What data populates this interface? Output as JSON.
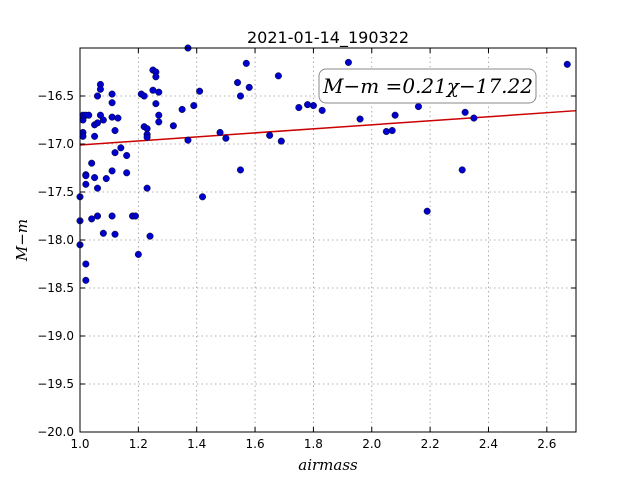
{
  "chart_data": {
    "type": "scatter",
    "title": "2021-01-14_190322",
    "xlabel": "airmass",
    "ylabel": "M−m",
    "xlim": [
      1.0,
      2.7
    ],
    "ylim": [
      -20.0,
      -16.0
    ],
    "x_ticks": [
      1.0,
      1.2,
      1.4,
      1.6,
      1.8,
      2.0,
      2.2,
      2.4,
      2.6
    ],
    "x_tick_labels": [
      "1.0",
      "1.2",
      "1.4",
      "1.6",
      "1.8",
      "2.0",
      "2.2",
      "2.4",
      "2.6"
    ],
    "y_ticks": [
      -16.5,
      -17.0,
      -17.5,
      -18.0,
      -18.5,
      -19.0,
      -19.5,
      -20.0
    ],
    "y_tick_labels": [
      "−16.5",
      "−17.0",
      "−17.5",
      "−18.0",
      "−18.5",
      "−19.0",
      "−19.5",
      "−20.0"
    ],
    "grid": true,
    "annotation": "M−m =0.21χ−17.22",
    "fit_line": {
      "slope": 0.21,
      "intercept": -17.22,
      "color": "#cc0000"
    },
    "marker_color": "#0000cc",
    "points": [
      [
        1.0,
        -17.8
      ],
      [
        1.0,
        -17.55
      ],
      [
        1.0,
        -18.05
      ],
      [
        1.01,
        -16.75
      ],
      [
        1.01,
        -16.7
      ],
      [
        1.01,
        -16.88
      ],
      [
        1.01,
        -16.92
      ],
      [
        1.02,
        -16.7
      ],
      [
        1.02,
        -17.32
      ],
      [
        1.02,
        -17.33
      ],
      [
        1.02,
        -17.42
      ],
      [
        1.02,
        -18.25
      ],
      [
        1.02,
        -18.42
      ],
      [
        1.03,
        -16.7
      ],
      [
        1.04,
        -17.2
      ],
      [
        1.04,
        -17.78
      ],
      [
        1.05,
        -16.8
      ],
      [
        1.05,
        -17.35
      ],
      [
        1.05,
        -16.92
      ],
      [
        1.06,
        -16.5
      ],
      [
        1.06,
        -17.75
      ],
      [
        1.06,
        -17.46
      ],
      [
        1.06,
        -16.78
      ],
      [
        1.07,
        -16.38
      ],
      [
        1.07,
        -16.43
      ],
      [
        1.07,
        -16.7
      ],
      [
        1.08,
        -16.75
      ],
      [
        1.08,
        -17.93
      ],
      [
        1.09,
        -17.36
      ],
      [
        1.11,
        -16.48
      ],
      [
        1.11,
        -16.57
      ],
      [
        1.11,
        -16.72
      ],
      [
        1.11,
        -17.28
      ],
      [
        1.11,
        -17.75
      ],
      [
        1.12,
        -16.86
      ],
      [
        1.12,
        -17.09
      ],
      [
        1.12,
        -17.94
      ],
      [
        1.13,
        -16.73
      ],
      [
        1.14,
        -17.04
      ],
      [
        1.16,
        -17.12
      ],
      [
        1.16,
        -17.3
      ],
      [
        1.18,
        -17.75
      ],
      [
        1.19,
        -17.75
      ],
      [
        1.2,
        -18.15
      ],
      [
        1.21,
        -16.48
      ],
      [
        1.22,
        -16.5
      ],
      [
        1.22,
        -16.82
      ],
      [
        1.23,
        -16.84
      ],
      [
        1.23,
        -16.9
      ],
      [
        1.23,
        -16.93
      ],
      [
        1.23,
        -17.46
      ],
      [
        1.24,
        -17.96
      ],
      [
        1.25,
        -16.44
      ],
      [
        1.25,
        -16.23
      ],
      [
        1.26,
        -16.25
      ],
      [
        1.26,
        -16.3
      ],
      [
        1.26,
        -16.58
      ],
      [
        1.27,
        -16.46
      ],
      [
        1.27,
        -16.7
      ],
      [
        1.27,
        -16.77
      ],
      [
        1.32,
        -16.81
      ],
      [
        1.35,
        -16.64
      ],
      [
        1.37,
        -16.96
      ],
      [
        1.37,
        -16.0
      ],
      [
        1.39,
        -16.6
      ],
      [
        1.41,
        -16.45
      ],
      [
        1.42,
        -17.55
      ],
      [
        1.48,
        -16.88
      ],
      [
        1.5,
        -16.94
      ],
      [
        1.54,
        -16.36
      ],
      [
        1.55,
        -16.5
      ],
      [
        1.55,
        -17.27
      ],
      [
        1.57,
        -16.16
      ],
      [
        1.58,
        -16.41
      ],
      [
        1.65,
        -16.91
      ],
      [
        1.68,
        -16.29
      ],
      [
        1.69,
        -16.97
      ],
      [
        1.75,
        -16.62
      ],
      [
        1.78,
        -16.59
      ],
      [
        1.8,
        -16.6
      ],
      [
        1.83,
        -16.65
      ],
      [
        1.92,
        -16.15
      ],
      [
        1.96,
        -16.74
      ],
      [
        2.05,
        -16.87
      ],
      [
        2.07,
        -16.86
      ],
      [
        2.08,
        -16.7
      ],
      [
        2.16,
        -16.61
      ],
      [
        2.19,
        -17.7
      ],
      [
        2.31,
        -17.27
      ],
      [
        2.32,
        -16.67
      ],
      [
        2.35,
        -16.73
      ],
      [
        2.67,
        -16.17
      ]
    ]
  }
}
